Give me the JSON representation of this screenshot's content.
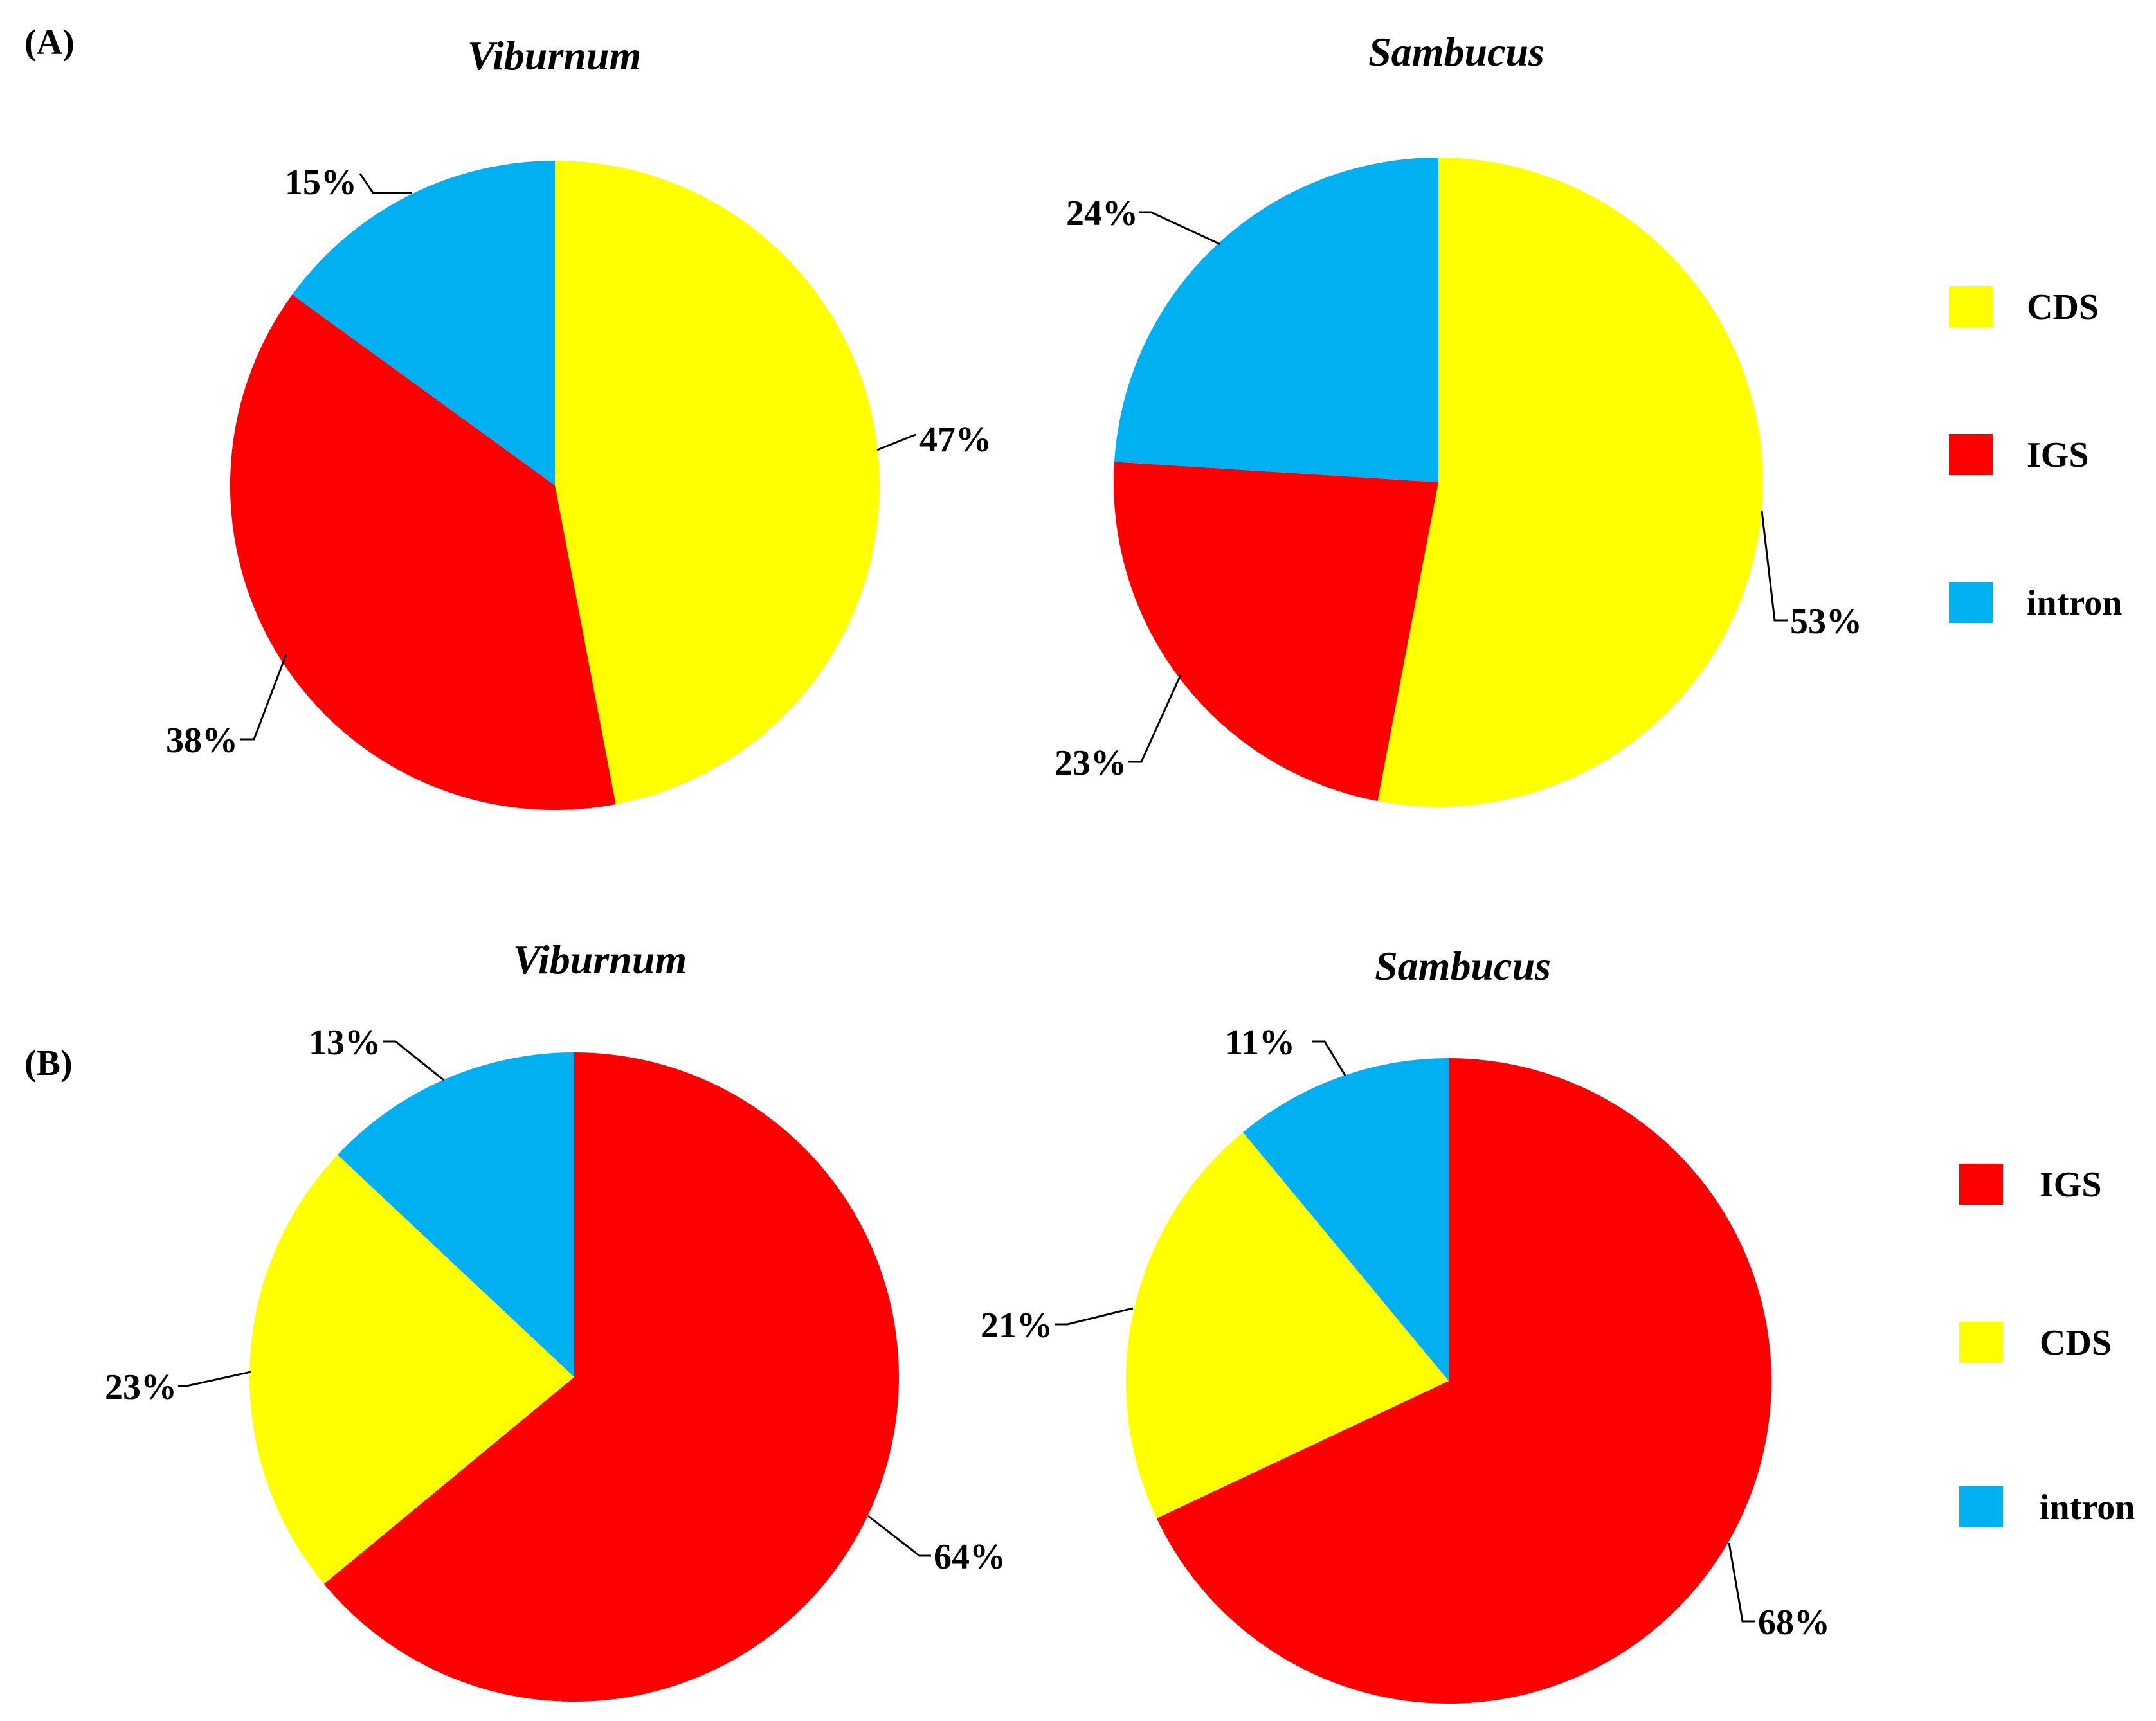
{
  "panels": [
    {
      "label": "(A)"
    },
    {
      "label": "(B)"
    }
  ],
  "legends": [
    {
      "items": [
        {
          "label": "CDS",
          "color": "#ffff00"
        },
        {
          "label": "IGS",
          "color": "#ff0000"
        },
        {
          "label": "intron",
          "color": "#00b0f0"
        }
      ]
    },
    {
      "items": [
        {
          "label": "IGS",
          "color": "#ff0000"
        },
        {
          "label": "CDS",
          "color": "#ffff00"
        },
        {
          "label": "intron",
          "color": "#00b0f0"
        }
      ]
    }
  ],
  "chart_data": [
    {
      "type": "pie",
      "panel": "(A)",
      "title": "Viburnum",
      "categories": [
        "CDS",
        "IGS",
        "intron"
      ],
      "values": [
        47,
        38,
        15
      ],
      "data_labels": [
        "47%",
        "38%",
        "15%"
      ],
      "colors": [
        "#ffff00",
        "#ff0000",
        "#00b0f0"
      ]
    },
    {
      "type": "pie",
      "panel": "(A)",
      "title": "Sambucus",
      "categories": [
        "CDS",
        "IGS",
        "intron"
      ],
      "values": [
        53,
        23,
        24
      ],
      "data_labels": [
        "53%",
        "23%",
        "24%"
      ],
      "colors": [
        "#ffff00",
        "#ff0000",
        "#00b0f0"
      ]
    },
    {
      "type": "pie",
      "panel": "(B)",
      "title": "Viburnum",
      "categories": [
        "IGS",
        "CDS",
        "intron"
      ],
      "values": [
        64,
        23,
        13
      ],
      "data_labels": [
        "64%",
        "23%",
        "13%"
      ],
      "colors": [
        "#ff0000",
        "#ffff00",
        "#00b0f0"
      ]
    },
    {
      "type": "pie",
      "panel": "(B)",
      "title": "Sambucus",
      "categories": [
        "IGS",
        "CDS",
        "intron"
      ],
      "values": [
        68,
        21,
        11
      ],
      "data_labels": [
        "68%",
        "21%",
        "11%"
      ],
      "colors": [
        "#ff0000",
        "#ffff00",
        "#00b0f0"
      ]
    }
  ]
}
